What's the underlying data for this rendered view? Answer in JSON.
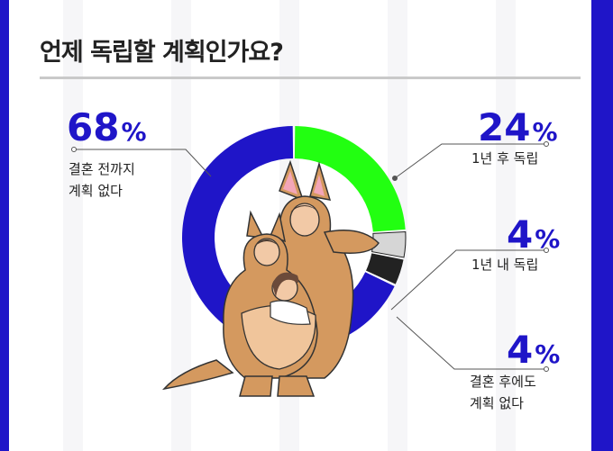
{
  "title": "언제 독립할 계획인가요?",
  "colors": {
    "frame": "#1f15c8",
    "accent": "#1f15c8",
    "green": "#22ff11",
    "dark": "#222222",
    "light": "#d6d6d6"
  },
  "chart_data": {
    "type": "pie",
    "title": "언제 독립할 계획인가요?",
    "slices": [
      {
        "label": "1년 후 독립",
        "value": 24,
        "color": "#22ff11"
      },
      {
        "label": "1년 내 독립",
        "value": 4,
        "color": "#d6d6d6"
      },
      {
        "label": "결혼 후에도 계획 없다",
        "value": 4,
        "color": "#222222"
      },
      {
        "label": "결혼 전까지 계획 없다",
        "value": 68,
        "color": "#1f15c8"
      }
    ]
  },
  "labels": {
    "s68": {
      "num": "68",
      "sign": "%",
      "line1": "결혼 전까지",
      "line2": "계획 없다"
    },
    "s24": {
      "num": "24",
      "sign": "%",
      "line1": "1년 후 독립"
    },
    "s4a": {
      "num": "4",
      "sign": "%",
      "line1": "1년 내 독립"
    },
    "s4b": {
      "num": "4",
      "sign": "%",
      "line1": "결혼 후에도",
      "line2": "계획 없다"
    }
  }
}
